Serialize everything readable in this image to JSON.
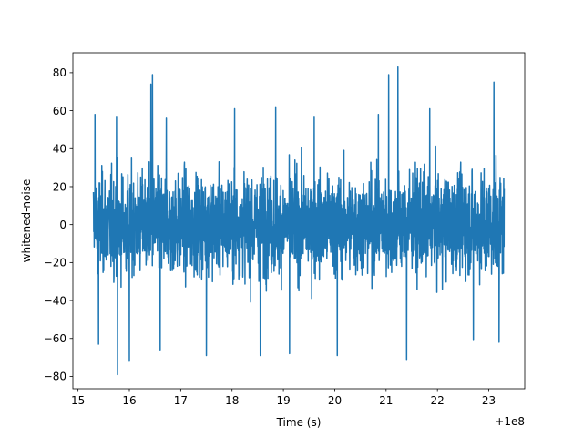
{
  "chart_data": {
    "type": "line",
    "title": "",
    "xlabel": "Time (s)",
    "ylabel": "whitened-noise",
    "x_offset_label": "+1e8",
    "x_offset": 100000000,
    "xlim": [
      14.9,
      23.7
    ],
    "ylim": [
      -86.5,
      90.5
    ],
    "xticks": [
      15,
      16,
      17,
      18,
      19,
      20,
      21,
      22,
      23
    ],
    "yticks": [
      -80,
      -60,
      -40,
      -20,
      0,
      20,
      40,
      60,
      80
    ],
    "grid": false,
    "legend": "none",
    "series": [
      {
        "color": "#1f77b4",
        "x_start": 15.3,
        "x_end": 23.3,
        "typical_range": [
          -40,
          40
        ],
        "peaks": [
          {
            "x": 15.33,
            "y": 58
          },
          {
            "x": 15.75,
            "y": 57
          },
          {
            "x": 16.42,
            "y": 74
          },
          {
            "x": 16.45,
            "y": 79
          },
          {
            "x": 16.72,
            "y": 56
          },
          {
            "x": 18.05,
            "y": 61
          },
          {
            "x": 18.85,
            "y": 62
          },
          {
            "x": 19.6,
            "y": 57
          },
          {
            "x": 20.85,
            "y": 58
          },
          {
            "x": 21.05,
            "y": 79
          },
          {
            "x": 21.23,
            "y": 83
          },
          {
            "x": 21.85,
            "y": 61
          },
          {
            "x": 23.1,
            "y": 75
          }
        ],
        "troughs": [
          {
            "x": 15.4,
            "y": -63
          },
          {
            "x": 15.77,
            "y": -79
          },
          {
            "x": 16.0,
            "y": -72
          },
          {
            "x": 16.6,
            "y": -66
          },
          {
            "x": 17.5,
            "y": -69
          },
          {
            "x": 18.55,
            "y": -69
          },
          {
            "x": 19.12,
            "y": -68
          },
          {
            "x": 20.05,
            "y": -69
          },
          {
            "x": 21.4,
            "y": -71
          },
          {
            "x": 22.7,
            "y": -61
          },
          {
            "x": 23.2,
            "y": -62
          }
        ]
      }
    ]
  }
}
